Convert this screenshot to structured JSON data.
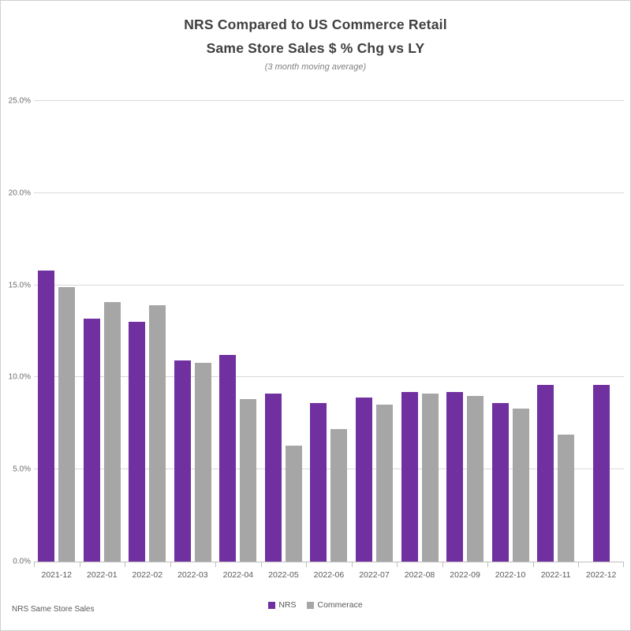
{
  "chart_data": {
    "type": "bar",
    "title": "NRS Compared to US Commerce Retail",
    "subtitle": "Same Store Sales $ % Chg vs LY",
    "caption": "(3 month moving average)",
    "categories": [
      "2021-12",
      "2022-01",
      "2022-02",
      "2022-03",
      "2022-04",
      "2022-05",
      "2022-06",
      "2022-07",
      "2022-08",
      "2022-09",
      "2022-10",
      "2022-11",
      "2022-12"
    ],
    "series": [
      {
        "name": "NRS",
        "color": "#7030A0",
        "values": [
          15.8,
          13.2,
          13.0,
          10.9,
          11.2,
          9.1,
          8.6,
          8.9,
          9.2,
          9.2,
          8.6,
          9.6,
          9.6
        ]
      },
      {
        "name": "Commerace",
        "color": "#A6A6A6",
        "values": [
          14.9,
          14.1,
          13.9,
          10.8,
          8.8,
          6.3,
          7.2,
          8.5,
          9.1,
          9.0,
          8.3,
          6.9,
          null
        ]
      }
    ],
    "ylim": [
      0,
      25
    ],
    "y_ticks": [
      {
        "value": 0,
        "label": "0.0%"
      },
      {
        "value": 5,
        "label": "5.0%"
      },
      {
        "value": 10,
        "label": "10.0%"
      },
      {
        "value": 15,
        "label": "15.0%"
      },
      {
        "value": 20,
        "label": "20.0%"
      },
      {
        "value": 25,
        "label": "25.0%"
      }
    ],
    "grid": true,
    "legend_position": "bottom",
    "xlabel": "",
    "ylabel": ""
  },
  "footer": {
    "note": "NRS Same Store Sales"
  },
  "colors": {
    "nrs": "#7030A0",
    "commerce": "#A6A6A6",
    "gridline": "#D9D9D9",
    "axis": "#BFBFBF",
    "axis_text": "#595959",
    "title_text": "#3F3F3F"
  }
}
